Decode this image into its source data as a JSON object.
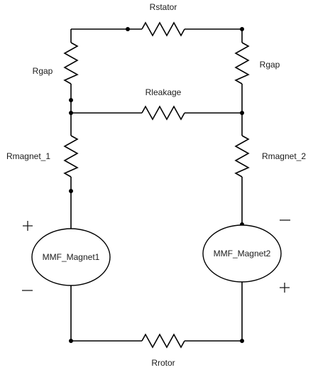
{
  "diagram": {
    "type": "magnetic-equivalent-circuit",
    "resistors": {
      "stator": "Rstator",
      "gap_left": "Rgap",
      "gap_right": "Rgap",
      "leakage": "Rleakage",
      "magnet_1": "Rmagnet_1",
      "magnet_2": "Rmagnet_2",
      "rotor": "Rrotor"
    },
    "sources": {
      "magnet_1": "MMF_Magnet1",
      "magnet_2": "MMF_Magnet2"
    },
    "polarity": {
      "magnet_1_top": "plus",
      "magnet_1_bottom": "minus",
      "magnet_2_top": "minus",
      "magnet_2_bottom": "plus"
    }
  }
}
